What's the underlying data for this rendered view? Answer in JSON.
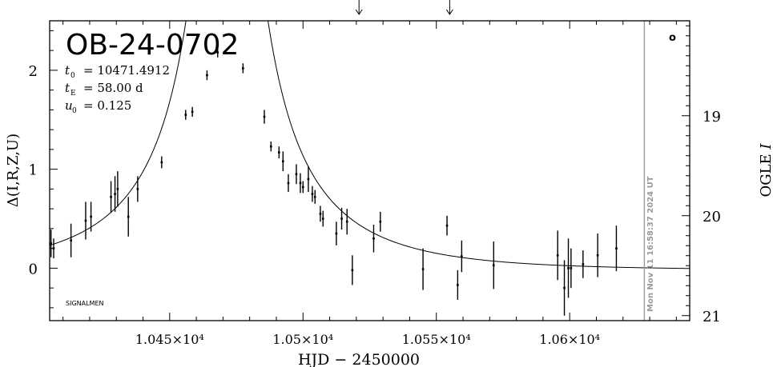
{
  "chart_data": {
    "type": "scatter",
    "title": "OB-24-0702",
    "params": [
      {
        "sym": "t",
        "sub": "0",
        "value": "= 10471.4912"
      },
      {
        "sym": "t",
        "sub": "E",
        "value": "= 58.00 d"
      },
      {
        "sym": "u",
        "sub": "0",
        "value": "= 0.125"
      }
    ],
    "xlabel": "HJD − 2450000",
    "ylabel_left": "Δ(I,R,Z,U)",
    "ylabel_right_prefix": "OGLE",
    "ylabel_right_italic": "I",
    "corner_label": "SIGNALMEN",
    "corner_marker": "o",
    "timestamp": "Mon Nov 11 16:58:37 2024 UT",
    "xlim": [
      10405,
      10645
    ],
    "ylim": [
      -0.53,
      2.5
    ],
    "mag_lim": [
      18.05,
      21.05
    ],
    "now_line_x": 10628,
    "arrows_x": [
      10521,
      10555
    ],
    "x_ticks": [
      {
        "value": 10450,
        "label": "1.045×10⁴"
      },
      {
        "value": 10500,
        "label": "1.05×10⁴"
      },
      {
        "value": 10550,
        "label": "1.055×10⁴"
      },
      {
        "value": 10600,
        "label": "1.06×10⁴"
      }
    ],
    "y_ticks": [
      {
        "value": 0,
        "label": "0"
      },
      {
        "value": 1,
        "label": "1"
      },
      {
        "value": 2,
        "label": "2"
      }
    ],
    "mag_ticks": [
      {
        "value": 19,
        "label": "19"
      },
      {
        "value": 20,
        "label": "20"
      },
      {
        "value": 21,
        "label": "21"
      }
    ],
    "model": {
      "t0": 10471.4912,
      "tE": 58.0,
      "u0": 0.125,
      "offset": -0.02
    },
    "points": [
      {
        "x": 10405.5,
        "y": 0.25,
        "err": 0.14
      },
      {
        "x": 10406.5,
        "y": 0.2,
        "err": 0.1
      },
      {
        "x": 10413.0,
        "y": 0.28,
        "err": 0.17
      },
      {
        "x": 10418.5,
        "y": 0.48,
        "err": 0.19
      },
      {
        "x": 10420.5,
        "y": 0.52,
        "err": 0.15
      },
      {
        "x": 10428.0,
        "y": 0.72,
        "err": 0.16
      },
      {
        "x": 10429.5,
        "y": 0.75,
        "err": 0.18
      },
      {
        "x": 10430.5,
        "y": 0.8,
        "err": 0.18
      },
      {
        "x": 10434.5,
        "y": 0.52,
        "err": 0.2
      },
      {
        "x": 10438.0,
        "y": 0.8,
        "err": 0.13
      },
      {
        "x": 10447.0,
        "y": 1.07,
        "err": 0.06
      },
      {
        "x": 10456.0,
        "y": 1.55,
        "err": 0.05
      },
      {
        "x": 10458.5,
        "y": 1.58,
        "err": 0.05
      },
      {
        "x": 10464.0,
        "y": 1.95,
        "err": 0.05
      },
      {
        "x": 10468.0,
        "y": 2.18,
        "err": 0.05
      },
      {
        "x": 10477.5,
        "y": 2.02,
        "err": 0.05
      },
      {
        "x": 10485.5,
        "y": 1.53,
        "err": 0.07
      },
      {
        "x": 10488.0,
        "y": 1.23,
        "err": 0.05
      },
      {
        "x": 10491.0,
        "y": 1.17,
        "err": 0.06
      },
      {
        "x": 10492.5,
        "y": 1.08,
        "err": 0.1
      },
      {
        "x": 10494.5,
        "y": 0.86,
        "err": 0.09
      },
      {
        "x": 10497.5,
        "y": 0.95,
        "err": 0.1
      },
      {
        "x": 10499.0,
        "y": 0.86,
        "err": 0.1
      },
      {
        "x": 10500.0,
        "y": 0.82,
        "err": 0.06
      },
      {
        "x": 10502.0,
        "y": 0.9,
        "err": 0.13
      },
      {
        "x": 10503.5,
        "y": 0.75,
        "err": 0.08
      },
      {
        "x": 10504.5,
        "y": 0.72,
        "err": 0.07
      },
      {
        "x": 10506.5,
        "y": 0.55,
        "err": 0.08
      },
      {
        "x": 10507.5,
        "y": 0.5,
        "err": 0.08
      },
      {
        "x": 10512.5,
        "y": 0.35,
        "err": 0.12
      },
      {
        "x": 10514.5,
        "y": 0.5,
        "err": 0.11
      },
      {
        "x": 10516.5,
        "y": 0.47,
        "err": 0.13
      },
      {
        "x": 10518.5,
        "y": -0.02,
        "err": 0.15
      },
      {
        "x": 10526.5,
        "y": 0.3,
        "err": 0.14
      },
      {
        "x": 10529.0,
        "y": 0.47,
        "err": 0.1
      },
      {
        "x": 10545.0,
        "y": -0.01,
        "err": 0.21
      },
      {
        "x": 10554.0,
        "y": 0.43,
        "err": 0.1
      },
      {
        "x": 10558.0,
        "y": -0.17,
        "err": 0.15
      },
      {
        "x": 10559.5,
        "y": 0.12,
        "err": 0.16
      },
      {
        "x": 10571.5,
        "y": 0.03,
        "err": 0.24
      },
      {
        "x": 10595.5,
        "y": 0.13,
        "err": 0.25
      },
      {
        "x": 10598.0,
        "y": -0.2,
        "err": 0.28
      },
      {
        "x": 10599.5,
        "y": 0.0,
        "err": 0.3
      },
      {
        "x": 10600.5,
        "y": 0.0,
        "err": 0.2
      },
      {
        "x": 10605.0,
        "y": 0.04,
        "err": 0.14
      },
      {
        "x": 10610.5,
        "y": 0.13,
        "err": 0.22
      },
      {
        "x": 10617.5,
        "y": 0.2,
        "err": 0.23
      }
    ]
  }
}
